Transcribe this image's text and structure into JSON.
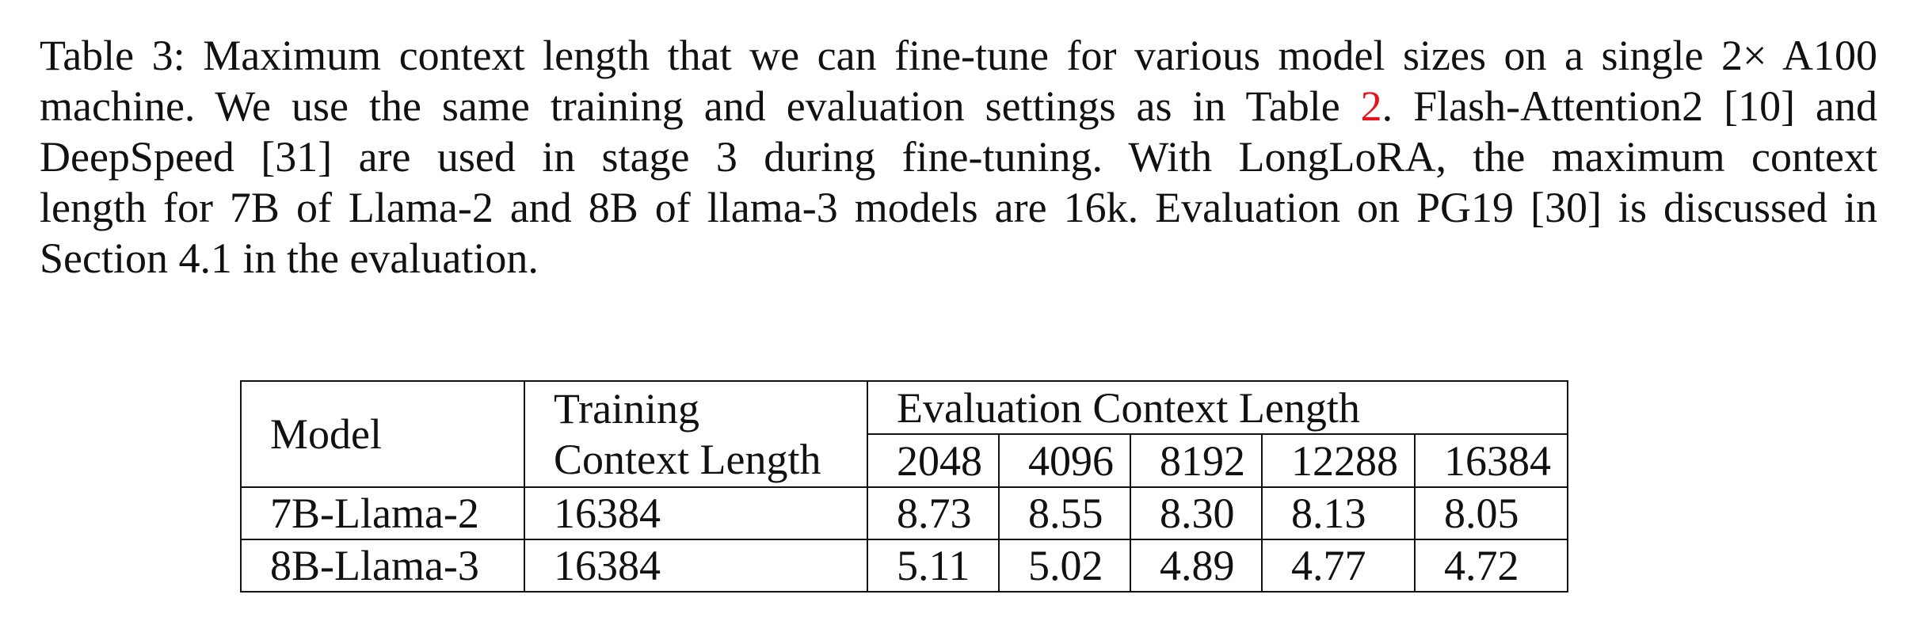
{
  "caption": {
    "line1": "Table 3: Maximum context length that we can fine-tune for various model sizes on a single 2× A100",
    "line2_a": "machine. We use the same training and evaluation settings as in Table ",
    "line2_ref": "2",
    "line2_b": ". Flash-Attention2 [10] and",
    "line3": "DeepSpeed [31] are used in stage 3 during fine-tuning.  With LongLoRA, the maximum context",
    "line4": "length for 7B of Llama-2 and 8B of llama-3 models are 16k. Evaluation on PG19 [30] is discussed in",
    "line5": "Section 4.1 in the evaluation."
  },
  "table": {
    "headers": {
      "model": "Model",
      "training_line1": "Training",
      "training_line2": "Context Length",
      "evaluation_group": "Evaluation Context Length",
      "eval_lengths": [
        "2048",
        "4096",
        "8192",
        "12288",
        "16384"
      ]
    },
    "rows": [
      {
        "model": "7B-Llama-2",
        "training": "16384",
        "values": [
          "8.73",
          "8.55",
          "8.30",
          "8.13",
          "8.05"
        ]
      },
      {
        "model": "8B-Llama-3",
        "training": "16384",
        "values": [
          "5.11",
          "5.02",
          "4.89",
          "4.77",
          "4.72"
        ]
      }
    ]
  }
}
